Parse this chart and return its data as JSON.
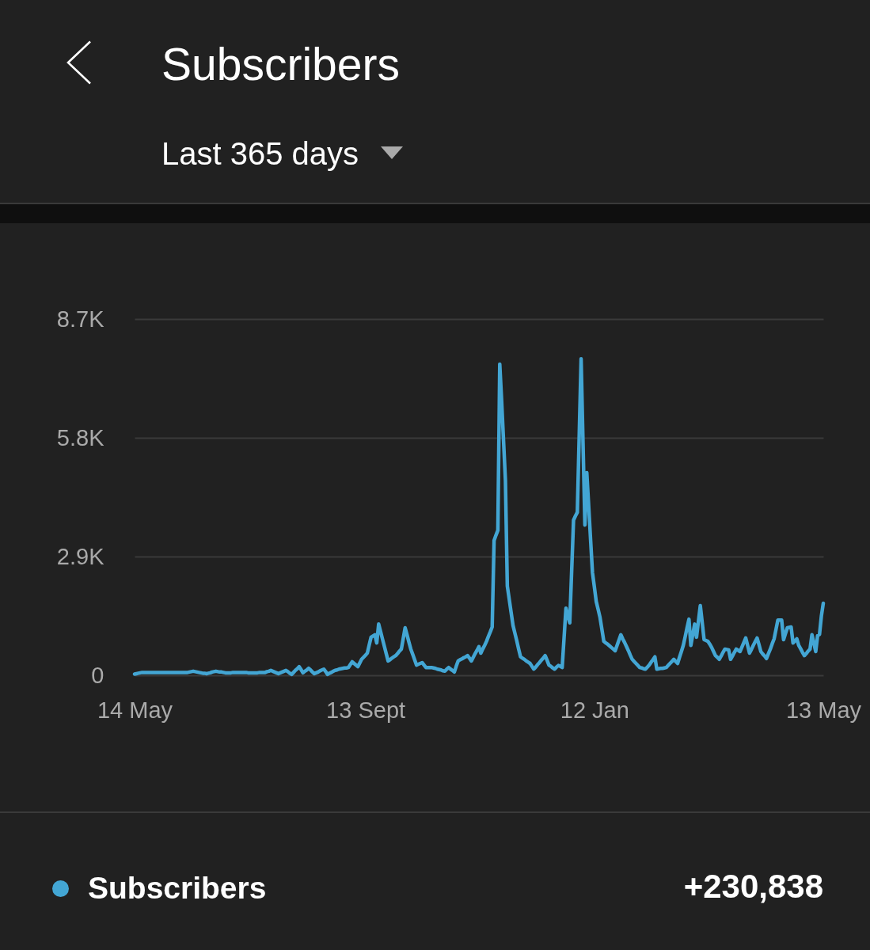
{
  "chart_data": {
    "type": "line",
    "title": "Subscribers",
    "subtitle": "Last 365 days",
    "categories": [
      "14 May",
      null,
      null,
      null,
      null,
      null,
      null,
      null,
      null,
      null,
      null,
      null,
      null,
      null,
      null,
      null,
      null,
      null,
      null,
      null,
      null,
      null,
      null,
      null,
      null,
      null,
      null,
      null,
      null,
      null,
      null,
      null,
      null,
      null,
      null,
      null,
      null,
      null,
      null,
      null,
      null,
      null,
      null,
      null,
      null,
      null,
      null,
      null,
      null,
      null,
      null,
      null,
      null,
      null,
      null,
      null,
      null,
      null,
      null,
      null,
      null,
      null,
      null,
      null,
      null,
      null,
      null,
      null,
      null,
      null,
      null,
      null,
      null,
      null,
      null,
      null,
      null,
      null,
      null,
      null,
      null,
      null,
      null,
      null,
      null,
      null,
      null,
      null,
      null,
      null,
      null,
      null,
      null,
      null,
      null,
      null,
      null,
      null,
      null,
      null,
      null,
      null,
      null,
      null,
      null,
      null,
      null,
      null,
      null,
      null,
      null,
      null,
      null,
      null,
      null,
      null,
      null,
      null,
      null,
      null,
      null,
      null,
      "13 Sept",
      null,
      null,
      null,
      null,
      null,
      null,
      null,
      null,
      null,
      null,
      null,
      null,
      null,
      null,
      null,
      null,
      null,
      null,
      null,
      null,
      null,
      null,
      null,
      null,
      null,
      null,
      null,
      null,
      null,
      null,
      null,
      null,
      null,
      null,
      null,
      null,
      null,
      null,
      null,
      null,
      null,
      null,
      null,
      null,
      null,
      null,
      null,
      null,
      null,
      null,
      null,
      null,
      null,
      null,
      null,
      null,
      null,
      null,
      null,
      null,
      null,
      null,
      null,
      null,
      null,
      null,
      null,
      null,
      null,
      null,
      null,
      null,
      null,
      null,
      null,
      null,
      null,
      null,
      null,
      null,
      null,
      null,
      null,
      null,
      null,
      null,
      null,
      null,
      null,
      null,
      null,
      null,
      null,
      null,
      null,
      null,
      null,
      null,
      null,
      null,
      null,
      null,
      null,
      null,
      null,
      null,
      null,
      null,
      null,
      null,
      null,
      null,
      null,
      null,
      null,
      null,
      null,
      null,
      null,
      null,
      "12 Jan",
      null,
      null,
      null,
      null,
      null,
      null,
      null,
      null,
      null,
      null,
      null,
      null,
      null,
      null,
      null,
      null,
      null,
      null,
      null,
      null,
      null,
      null,
      null,
      null,
      null,
      null,
      null,
      null,
      null,
      null,
      null,
      null,
      null,
      null,
      null,
      null,
      null,
      null,
      null,
      null,
      null,
      null,
      null,
      null,
      null,
      null,
      null,
      null,
      null,
      null,
      null,
      null,
      null,
      null,
      null,
      null,
      null,
      null,
      null,
      null,
      null,
      null,
      null,
      null,
      null,
      null,
      null,
      null,
      null,
      null,
      null,
      null,
      null,
      null,
      null,
      null,
      null,
      null,
      null,
      null,
      null,
      null,
      null,
      null,
      null,
      null,
      null,
      null,
      null,
      null,
      null,
      null,
      null,
      null,
      null,
      null,
      null,
      null,
      null,
      null,
      null,
      null,
      null,
      null,
      null,
      null,
      null,
      null,
      null,
      null,
      null,
      null,
      null,
      null,
      null,
      null,
      null,
      null,
      null,
      null,
      "13 May"
    ],
    "series": [
      {
        "name": "Subscribers",
        "color": "#43a6d4",
        "values": [
          30,
          40,
          50,
          60,
          70,
          70,
          70,
          70,
          70,
          70,
          70,
          70,
          70,
          70,
          70,
          70,
          70,
          70,
          70,
          70,
          70,
          70,
          70,
          70,
          70,
          70,
          70,
          70,
          70,
          80,
          90,
          100,
          90,
          80,
          70,
          60,
          50,
          50,
          40,
          50,
          60,
          80,
          90,
          100,
          90,
          80,
          80,
          70,
          60,
          60,
          60,
          60,
          70,
          70,
          70,
          70,
          70,
          70,
          70,
          70,
          60,
          60,
          60,
          60,
          60,
          60,
          70,
          70,
          70,
          70,
          90,
          100,
          120,
          100,
          80,
          60,
          40,
          60,
          80,
          100,
          120,
          90,
          50,
          20,
          70,
          120,
          160,
          210,
          140,
          60,
          100,
          130,
          170,
          130,
          80,
          40,
          60,
          80,
          110,
          130,
          150,
          90,
          20,
          50,
          70,
          100,
          120,
          130,
          150,
          160,
          170,
          180,
          180,
          190,
          260,
          330,
          290,
          250,
          210,
          300,
          390,
          440,
          490,
          540,
          740,
          930,
          960,
          990,
          790,
          1250,
          1070,
          890,
          710,
          530,
          350,
          380,
          420,
          450,
          480,
          530,
          590,
          640,
          900,
          1160,
          990,
          810,
          640,
          510,
          380,
          250,
          270,
          290,
          310,
          250,
          190,
          190,
          190,
          190,
          180,
          170,
          150,
          140,
          130,
          110,
          100,
          150,
          190,
          150,
          120,
          80,
          220,
          350,
          380,
          400,
          430,
          450,
          480,
          420,
          350,
          440,
          530,
          610,
          700,
          540,
          640,
          730,
          830,
          950,
          1060,
          1180,
          3290,
          3420,
          3540,
          7600,
          6700,
          5730,
          4760,
          2180,
          1860,
          1540,
          1220,
          1030,
          840,
          640,
          450,
          420,
          390,
          350,
          320,
          290,
          220,
          150,
          200,
          260,
          310,
          370,
          420,
          480,
          370,
          250,
          220,
          180,
          150,
          200,
          240,
          220,
          190,
          920,
          1640,
          1460,
          1280,
          2540,
          3790,
          3890,
          3980,
          5860,
          7730,
          5700,
          3670,
          4950,
          4140,
          3320,
          2510,
          2160,
          1800,
          1610,
          1410,
          1120,
          830,
          790,
          760,
          720,
          680,
          640,
          600,
          730,
          860,
          990,
          890,
          800,
          700,
          600,
          490,
          390,
          340,
          290,
          240,
          190,
          180,
          160,
          150,
          200,
          250,
          320,
          380,
          450,
          150,
          160,
          170,
          170,
          180,
          190,
          240,
          290,
          340,
          390,
          340,
          290,
          440,
          580,
          730,
          940,
          1160,
          1370,
          730,
          990,
          1250,
          930,
          1320,
          1700,
          1290,
          870,
          850,
          830,
          760,
          680,
          580,
          480,
          440,
          390,
          470,
          560,
          640,
          630,
          620,
          390,
          470,
          560,
          640,
          610,
          580,
          690,
          800,
          910,
          730,
          540,
          630,
          730,
          820,
          910,
          750,
          580,
          520,
          470,
          410,
          530,
          640,
          770,
          890,
          1120,
          1350,
          1350,
          1350,
          870,
          1020,
          1160,
          1170,
          1180,
          790,
          840,
          890,
          730,
          650,
          560,
          480,
          530,
          590,
          640,
          990,
          790,
          580,
          970,
          1000,
          1450,
          1760
        ]
      }
    ],
    "ylim": [
      0,
      8700
    ],
    "yticks": [
      0,
      {
        "value": 2900,
        "label": "2.9K"
      },
      {
        "value": 5800,
        "label": "5.8K"
      },
      {
        "value": 8700,
        "label": "8.7K"
      }
    ],
    "grid": "y",
    "legend": "bottom left",
    "annotations": [
      "+230,838"
    ]
  }
}
